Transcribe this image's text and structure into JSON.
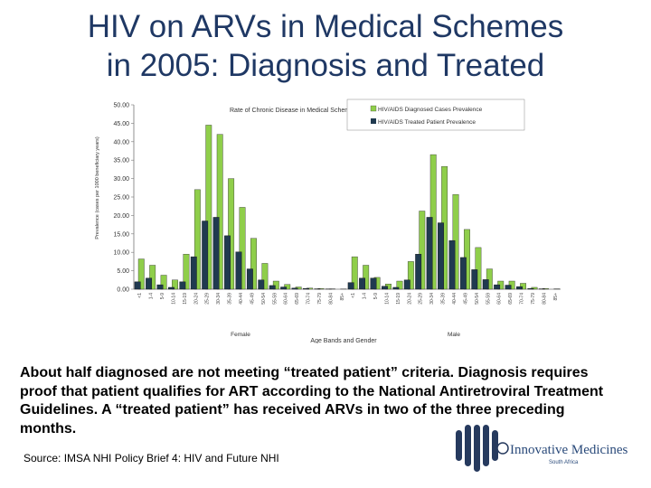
{
  "title": {
    "line1": "HIV on ARVs in Medical Schemes",
    "line2": "in 2005:  Diagnosis and Treated"
  },
  "colors": {
    "title": "#1f3864",
    "diagnosed": "#8fce4a",
    "treated": "#203a50",
    "logo_bars": "#263a5e",
    "logo_text": "#2a4a7a"
  },
  "chart_data": {
    "type": "bar",
    "title": "Rate of Chronic Disease in Medical Schemes",
    "ylabel": "Prevalence (cases per 1000 beneficiary years)",
    "xlabel": "Age Bands and Gender",
    "ylim": [
      0,
      50
    ],
    "yticks": [
      "0.00",
      "5.00",
      "10.00",
      "15.00",
      "20.00",
      "25.00",
      "30.00",
      "35.00",
      "40.00",
      "45.00",
      "50.00"
    ],
    "grid": false,
    "legend_position": "top-right",
    "groups": [
      "Female",
      "Male"
    ],
    "categories": [
      "<1",
      "1-4",
      "5-9",
      "10-14",
      "15-19",
      "20-24",
      "25-29",
      "30-34",
      "35-39",
      "40-44",
      "45-49",
      "50-54",
      "55-59",
      "60-64",
      "65-69",
      "70-74",
      "75-79",
      "80-84",
      "85+"
    ],
    "series": [
      {
        "name": "HIV/AIDS Diagnosed Cases Prevalence",
        "female": [
          8.2,
          6.5,
          3.8,
          2.5,
          9.5,
          27.0,
          44.5,
          42.0,
          30.0,
          22.2,
          13.8,
          7.0,
          2.2,
          1.3,
          0.6,
          0.3,
          0.2,
          0.1,
          0.05
        ],
        "male": [
          8.8,
          6.5,
          3.2,
          1.4,
          2.2,
          7.5,
          21.2,
          36.5,
          33.3,
          25.7,
          16.2,
          11.3,
          5.5,
          2.2,
          2.2,
          1.6,
          0.5,
          0.2,
          0.1
        ]
      },
      {
        "name": "HIV/AIDS Treated Patient Prevalence",
        "female": [
          2.0,
          3.0,
          1.2,
          0.5,
          2.0,
          8.8,
          18.5,
          19.5,
          14.5,
          10.1,
          5.5,
          2.5,
          1.0,
          0.6,
          0.3,
          0.2,
          0.1,
          0.05,
          0.0
        ],
        "male": [
          1.8,
          3.0,
          3.0,
          0.8,
          0.5,
          2.5,
          9.5,
          19.5,
          18.0,
          13.2,
          8.6,
          5.3,
          2.6,
          1.2,
          1.1,
          0.7,
          0.2,
          0.1,
          0.0
        ]
      }
    ]
  },
  "caption": "About half diagnosed are not meeting “treated patient” criteria. Diagnosis requires proof that patient qualifies for ART according to the National Antiretroviral Treatment Guidelines. A “treated patient” has received ARVs in two of the three preceding months.",
  "source": "Source: IMSA NHI Policy Brief 4: HIV and Future NHI",
  "logo": {
    "name": "Innovative Medicines",
    "sub": "South Africa"
  }
}
